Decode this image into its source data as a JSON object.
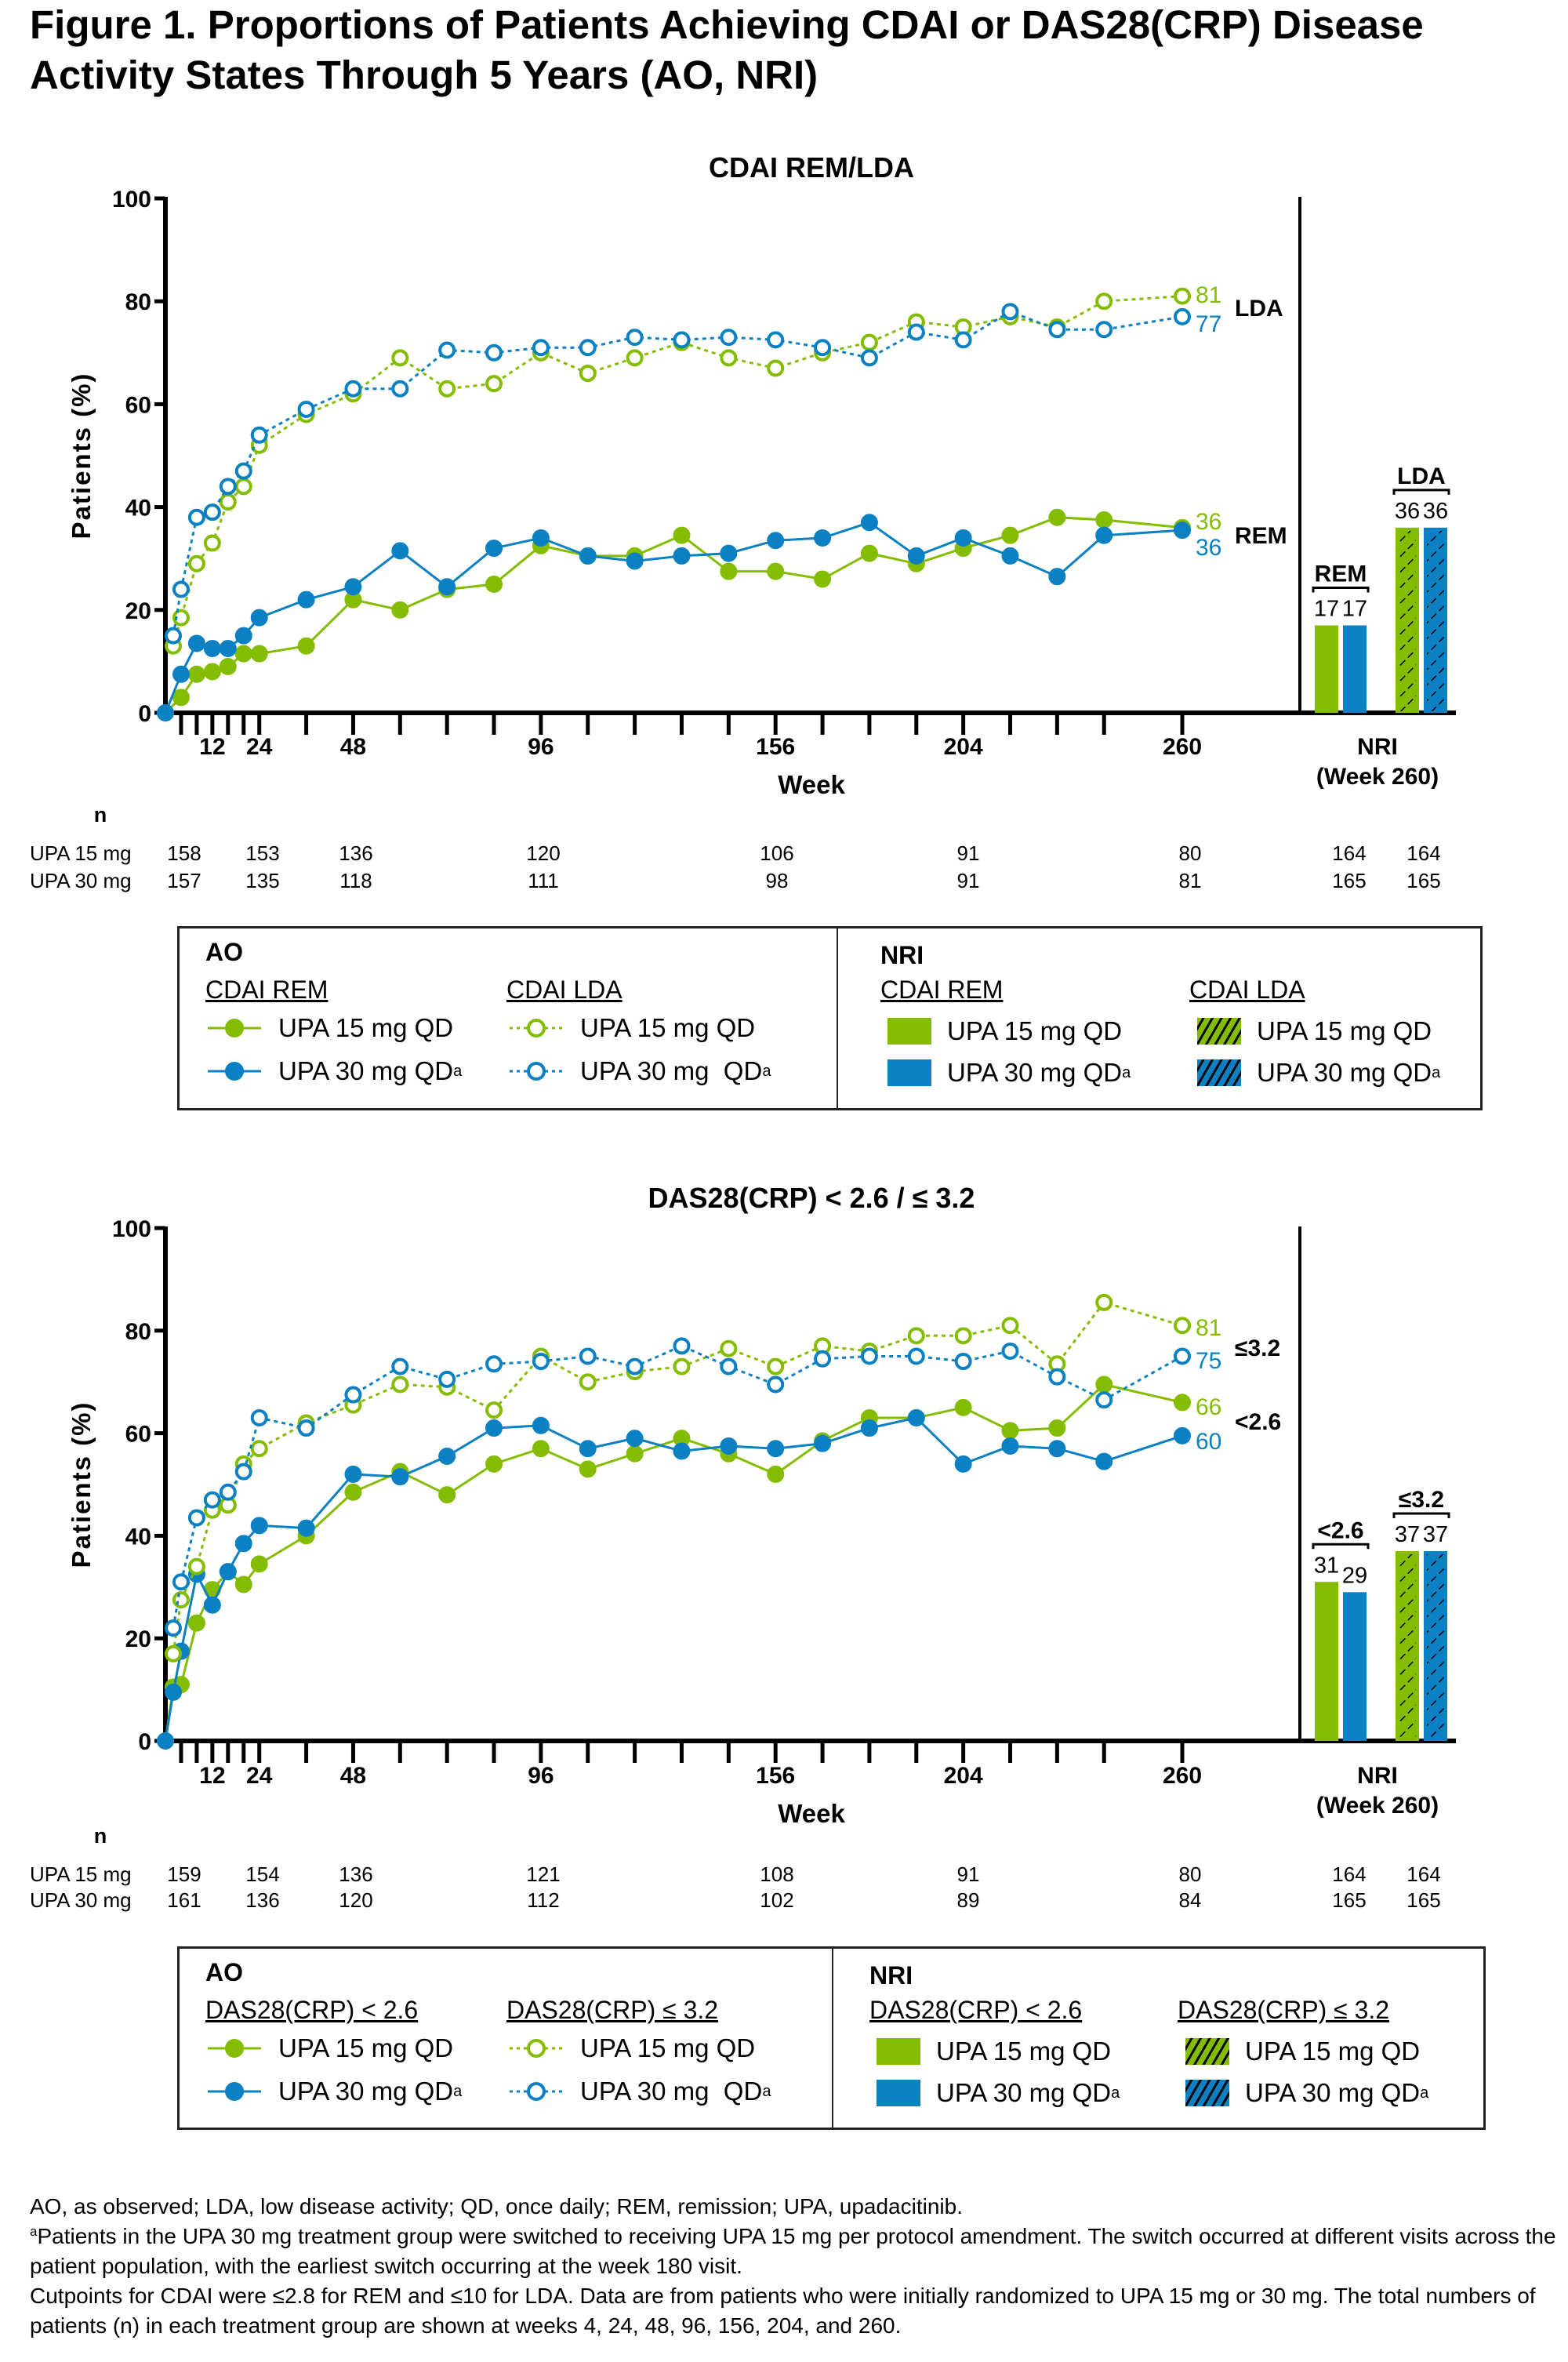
{
  "title": "Figure 1. Proportions of Patients Achieving CDAI or DAS28(CRP) Disease Activity States Through 5 Years (AO, NRI)",
  "colors": {
    "upa15": "#84bd00",
    "upa30": "#0b80c2",
    "axis": "#000000"
  },
  "chart_data": [
    {
      "type": "line",
      "title": "CDAI REM/LDA",
      "ylabel": "Patients (%)",
      "xlabel": "Week",
      "ylim": [
        0,
        100
      ],
      "yticks": [
        0,
        20,
        40,
        60,
        80,
        100
      ],
      "xtick_labels": [
        12,
        24,
        48,
        96,
        156,
        204,
        260
      ],
      "xtick_marks": [
        4,
        8,
        12,
        16,
        20,
        24,
        36,
        48,
        60,
        72,
        84,
        96,
        108,
        120,
        132,
        144,
        156,
        168,
        180,
        192,
        204,
        216,
        228,
        240,
        260
      ],
      "grid": false,
      "series": [
        {
          "name": "UPA 15 mg QD",
          "group": "CDAI REM",
          "method": "AO",
          "color": "#84bd00",
          "marker": "filled",
          "line": "solid",
          "x": [
            0,
            4,
            8,
            12,
            16,
            20,
            24,
            36,
            48,
            60,
            72,
            84,
            96,
            108,
            120,
            132,
            144,
            156,
            168,
            180,
            192,
            204,
            216,
            228,
            240,
            260
          ],
          "y": [
            0,
            3,
            7.5,
            8,
            9,
            11.5,
            11.5,
            13,
            22,
            20,
            24,
            25,
            32.5,
            30.5,
            30.5,
            34.5,
            27.5,
            27.5,
            26,
            31,
            29,
            32,
            34.5,
            38,
            37.5,
            36
          ]
        },
        {
          "name": "UPA 30 mg QD",
          "group": "CDAI REM",
          "method": "AO",
          "color": "#0b80c2",
          "marker": "filled",
          "line": "solid",
          "x": [
            0,
            4,
            8,
            12,
            16,
            20,
            24,
            36,
            48,
            60,
            72,
            84,
            96,
            108,
            120,
            132,
            144,
            156,
            168,
            180,
            192,
            204,
            216,
            228,
            240,
            260
          ],
          "y": [
            0,
            7.5,
            13.5,
            12.5,
            12.5,
            15,
            18.5,
            22,
            24.5,
            31.5,
            24.5,
            32,
            34,
            30.5,
            29.5,
            30.5,
            31,
            33.5,
            34,
            37,
            30.5,
            34,
            30.5,
            26.5,
            34.5,
            35.5
          ]
        },
        {
          "name": "UPA 15 mg QD",
          "group": "CDAI LDA",
          "method": "AO",
          "color": "#84bd00",
          "marker": "open",
          "line": "dotted",
          "x": [
            2,
            4,
            8,
            12,
            16,
            20,
            24,
            36,
            48,
            60,
            72,
            84,
            96,
            108,
            120,
            132,
            144,
            156,
            168,
            180,
            192,
            204,
            216,
            228,
            240,
            260
          ],
          "y": [
            13,
            18.5,
            29,
            33,
            41,
            44,
            52,
            58,
            62,
            69,
            63,
            64,
            70,
            66,
            69,
            72,
            69,
            67,
            70,
            72,
            76,
            75,
            77,
            75,
            80,
            81
          ]
        },
        {
          "name": "UPA 30 mg QD",
          "group": "CDAI LDA",
          "method": "AO",
          "color": "#0b80c2",
          "marker": "open",
          "line": "dotted",
          "x": [
            2,
            4,
            8,
            12,
            16,
            20,
            24,
            36,
            48,
            60,
            72,
            84,
            96,
            108,
            120,
            132,
            144,
            156,
            168,
            180,
            192,
            204,
            216,
            228,
            240,
            260
          ],
          "y": [
            15,
            24,
            38,
            39,
            44,
            47,
            54,
            59,
            63,
            63,
            70.5,
            70,
            71,
            71,
            73,
            72.5,
            73,
            72.5,
            71,
            69,
            74,
            72.5,
            78,
            74.5,
            74.5,
            77
          ]
        }
      ],
      "end_labels": [
        {
          "text": "81",
          "color": "#84bd00"
        },
        {
          "text": "77",
          "color": "#0b80c2"
        },
        {
          "text": "36",
          "color": "#84bd00"
        },
        {
          "text": "36",
          "color": "#0b80c2"
        }
      ],
      "group_labels": [
        "LDA",
        "REM"
      ],
      "nri": {
        "label": "NRI",
        "sublabel": "(Week 260)",
        "groups": [
          {
            "label": "REM",
            "hatched": false,
            "values": [
              17,
              17
            ],
            "value_labels": [
              "17",
              "17"
            ]
          },
          {
            "label": "LDA",
            "hatched": true,
            "values": [
              36,
              36
            ],
            "value_labels": [
              "36",
              "36"
            ]
          }
        ]
      },
      "n_table": {
        "header": "n",
        "rows": [
          {
            "label": "UPA 15 mg",
            "values": [
              "158",
              "153",
              "136",
              "120",
              "106",
              "91",
              "80"
            ],
            "nri": [
              "164",
              "164"
            ]
          },
          {
            "label": "UPA 30 mg",
            "values": [
              "157",
              "135",
              "118",
              "111",
              "98",
              "91",
              "81"
            ],
            "nri": [
              "165",
              "165"
            ]
          }
        ],
        "weeks": [
          4,
          24,
          48,
          96,
          156,
          204,
          260
        ]
      }
    },
    {
      "type": "line",
      "title": "DAS28(CRP) < 2.6 / ≤ 3.2",
      "ylabel": "Patients (%)",
      "xlabel": "Week",
      "ylim": [
        0,
        100
      ],
      "yticks": [
        0,
        20,
        40,
        60,
        80,
        100
      ],
      "xtick_labels": [
        12,
        24,
        48,
        96,
        156,
        204,
        260
      ],
      "xtick_marks": [
        4,
        8,
        12,
        16,
        20,
        24,
        36,
        48,
        60,
        72,
        84,
        96,
        108,
        120,
        132,
        144,
        156,
        168,
        180,
        192,
        204,
        216,
        228,
        240,
        260
      ],
      "grid": false,
      "series": [
        {
          "name": "UPA 15 mg QD",
          "group": "DAS28(CRP) < 2.6",
          "method": "AO",
          "color": "#84bd00",
          "marker": "filled",
          "line": "solid",
          "x": [
            0,
            2,
            4,
            8,
            12,
            16,
            20,
            24,
            36,
            48,
            60,
            72,
            84,
            96,
            108,
            120,
            132,
            144,
            156,
            168,
            180,
            192,
            204,
            216,
            228,
            240,
            260
          ],
          "y": [
            0,
            10.5,
            11,
            23,
            29.5,
            33,
            30.5,
            34.5,
            40,
            48.5,
            52.5,
            48,
            54,
            57,
            53,
            56,
            59,
            56,
            52,
            58.5,
            63,
            63,
            65,
            60.5,
            61,
            69.5,
            66
          ]
        },
        {
          "name": "UPA 30 mg QD",
          "group": "DAS28(CRP) < 2.6",
          "method": "AO",
          "color": "#0b80c2",
          "marker": "filled",
          "line": "solid",
          "x": [
            0,
            2,
            4,
            8,
            12,
            16,
            20,
            24,
            36,
            48,
            60,
            72,
            84,
            96,
            108,
            120,
            132,
            144,
            156,
            168,
            180,
            192,
            204,
            216,
            228,
            240,
            260
          ],
          "y": [
            0,
            9.5,
            17.5,
            32.5,
            26.5,
            33,
            38.5,
            42,
            41.5,
            52,
            51.5,
            55.5,
            61,
            61.5,
            57,
            59,
            56.5,
            57.5,
            57,
            58,
            61,
            63,
            54,
            57.5,
            57,
            54.5,
            59.5
          ]
        },
        {
          "name": "UPA 15 mg QD",
          "group": "DAS28(CRP) ≤ 3.2",
          "method": "AO",
          "color": "#84bd00",
          "marker": "open",
          "line": "dotted",
          "x": [
            2,
            4,
            8,
            12,
            16,
            20,
            24,
            36,
            48,
            60,
            72,
            84,
            96,
            108,
            120,
            132,
            144,
            156,
            168,
            180,
            192,
            204,
            216,
            228,
            240,
            260
          ],
          "y": [
            17,
            27.5,
            34,
            45,
            46,
            54,
            57,
            62,
            65.5,
            69.5,
            69,
            64.5,
            75,
            70,
            72,
            73,
            76.5,
            73,
            77,
            76,
            79,
            79,
            81,
            73.5,
            85.5,
            81
          ]
        },
        {
          "name": "UPA 30 mg QD",
          "group": "DAS28(CRP) ≤ 3.2",
          "method": "AO",
          "color": "#0b80c2",
          "marker": "open",
          "line": "dotted",
          "x": [
            2,
            4,
            8,
            12,
            16,
            20,
            24,
            36,
            48,
            60,
            72,
            84,
            96,
            108,
            120,
            132,
            144,
            156,
            168,
            180,
            192,
            204,
            216,
            228,
            240,
            260
          ],
          "y": [
            22,
            31,
            43.5,
            47,
            48.5,
            52.5,
            63,
            61,
            67.5,
            73,
            70.5,
            73.5,
            74,
            75,
            73,
            77,
            73,
            69.5,
            74.5,
            75,
            75,
            74,
            76,
            71,
            66.5,
            75
          ]
        }
      ],
      "end_labels": [
        {
          "text": "81",
          "color": "#84bd00"
        },
        {
          "text": "75",
          "color": "#0b80c2"
        },
        {
          "text": "66",
          "color": "#84bd00"
        },
        {
          "text": "60",
          "color": "#0b80c2"
        }
      ],
      "group_labels": [
        "≤3.2",
        "<2.6"
      ],
      "nri": {
        "label": "NRI",
        "sublabel": "(Week 260)",
        "groups": [
          {
            "label": "<2.6",
            "hatched": false,
            "values": [
              31,
              29
            ],
            "value_labels": [
              "31",
              "29"
            ]
          },
          {
            "label": "≤3.2",
            "hatched": true,
            "values": [
              37,
              37
            ],
            "value_labels": [
              "37",
              "37"
            ]
          }
        ]
      },
      "n_table": {
        "header": "n",
        "rows": [
          {
            "label": "UPA 15 mg",
            "values": [
              "159",
              "154",
              "136",
              "121",
              "108",
              "91",
              "80"
            ],
            "nri": [
              "164",
              "164"
            ]
          },
          {
            "label": "UPA 30 mg",
            "values": [
              "161",
              "136",
              "120",
              "112",
              "102",
              "89",
              "84"
            ],
            "nri": [
              "165",
              "165"
            ]
          }
        ],
        "weeks": [
          4,
          24,
          48,
          96,
          156,
          204,
          260
        ]
      }
    }
  ],
  "legends": [
    {
      "ao": "AO",
      "nri": "NRI",
      "ao_sub1": "CDAI REM",
      "ao_sub2": "CDAI LDA",
      "nri_sub1": "CDAI REM",
      "nri_sub2": "CDAI LDA",
      "upa15": "UPA 15 mg QD",
      "upa30": "UPA 30 mg QD",
      "upa30_spaced": "UPA 30 mg  QD",
      "marker": "a"
    },
    {
      "ao": "AO",
      "nri": "NRI",
      "ao_sub1": "DAS28(CRP) < 2.6",
      "ao_sub2": "DAS28(CRP) ≤ 3.2",
      "nri_sub1": "DAS28(CRP) < 2.6",
      "nri_sub2": "DAS28(CRP) ≤ 3.2",
      "upa15": "UPA 15 mg QD",
      "upa30": "UPA 30 mg QD",
      "upa30_spaced": "UPA 30 mg  QD",
      "marker": "a"
    }
  ],
  "footnotes": {
    "abbrev": "AO, as observed; LDA, low disease activity; QD, once daily; REM, remission; UPA, upadacitinib.",
    "marker": "a",
    "switch": "Patients in the UPA 30 mg treatment group were switched to receiving UPA 15 mg per protocol amendment. The switch occurred at different visits across the patient population, with the earliest switch occurring at the week 180 visit.",
    "cutpoints": "Cutpoints for CDAI were ≤2.8 for REM and ≤10 for LDA. Data are from patients who were initially randomized to UPA 15 mg or 30 mg. The total numbers of patients (n) in each treatment group are shown at weeks 4, 24, 48, 96, 156, 204, and 260."
  }
}
